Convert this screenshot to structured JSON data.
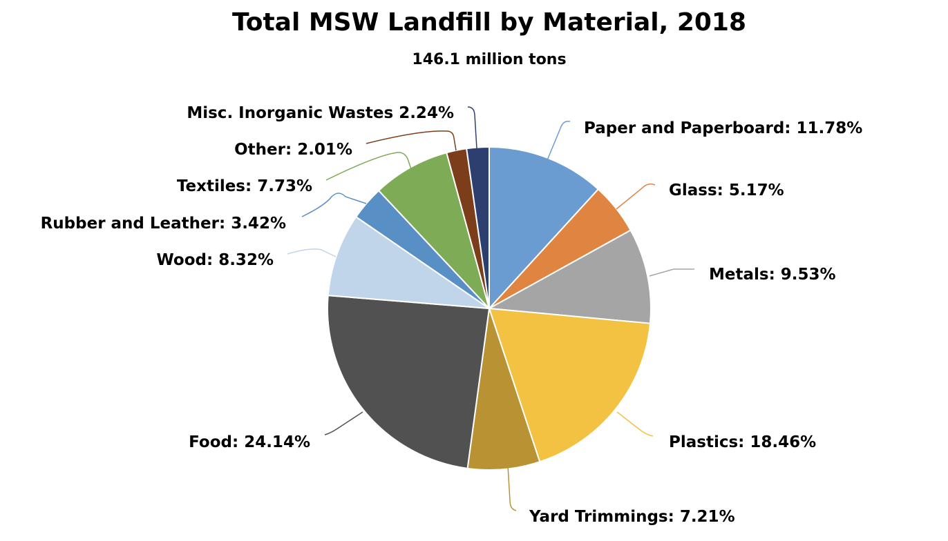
{
  "chart_data": {
    "type": "pie",
    "title": "Total MSW Landfill by Material, 2018",
    "subtitle": "146.1 million tons",
    "unit": "%",
    "start_angle": "12 o'clock, clockwise",
    "slices": [
      {
        "name": "Paper and Paperboard",
        "value": 11.78,
        "label": "Paper and Paperboard: 11.78%",
        "color": "#6a9bd1"
      },
      {
        "name": "Glass",
        "value": 5.17,
        "label": "Glass: 5.17%",
        "color": "#e08441"
      },
      {
        "name": "Metals",
        "value": 9.53,
        "label": "Metals: 9.53%",
        "color": "#a5a5a5"
      },
      {
        "name": "Plastics",
        "value": 18.46,
        "label": "Plastics: 18.46%",
        "color": "#f4c242"
      },
      {
        "name": "Yard Trimmings",
        "value": 7.21,
        "label": "Yard Trimmings: 7.21%",
        "color": "#b99233"
      },
      {
        "name": "Food",
        "value": 24.14,
        "label": "Food: 24.14%",
        "color": "#515151"
      },
      {
        "name": "Wood",
        "value": 8.32,
        "label": "Wood: 8.32%",
        "color": "#c0d5ea"
      },
      {
        "name": "Rubber and Leather",
        "value": 3.42,
        "label": "Rubber and Leather: 3.42%",
        "color": "#588fc4"
      },
      {
        "name": "Textiles",
        "value": 7.73,
        "label": "Textiles: 7.73%",
        "color": "#7eab55"
      },
      {
        "name": "Other",
        "value": 2.01,
        "label": "Other: 2.01%",
        "color": "#7c3e1a"
      },
      {
        "name": "Misc. Inorganic Wastes",
        "value": 2.24,
        "label": "Misc. Inorganic Wastes 2.24%",
        "color": "#2c3f6e"
      }
    ]
  }
}
